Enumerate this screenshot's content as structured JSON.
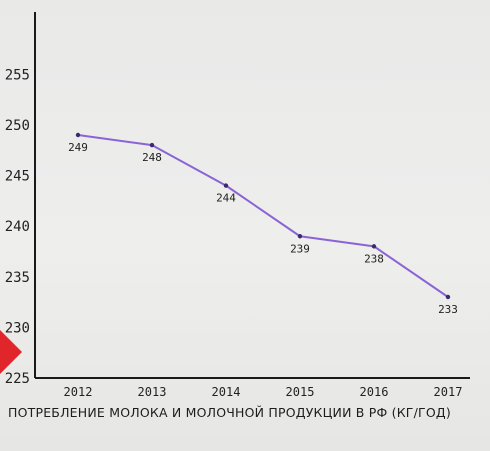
{
  "chart_data": {
    "type": "line",
    "title": "ПОТРЕБЛЕНИЕ МОЛОКА И МОЛОЧНОЙ ПРОДУКЦИИ В РФ (КГ/ГОД)",
    "xlabel": "",
    "ylabel": "",
    "categories": [
      "2012",
      "2013",
      "2014",
      "2015",
      "2016",
      "2017"
    ],
    "series": [
      {
        "values": [
          249,
          248,
          244,
          239,
          238,
          233
        ]
      }
    ],
    "data_labels": [
      "249",
      "248",
      "244",
      "239",
      "238",
      "233"
    ],
    "y_ticks": [
      225,
      230,
      235,
      240,
      245,
      250,
      255
    ],
    "ylim": [
      225,
      257
    ],
    "grid": false,
    "line_color": "#8a63d6"
  }
}
